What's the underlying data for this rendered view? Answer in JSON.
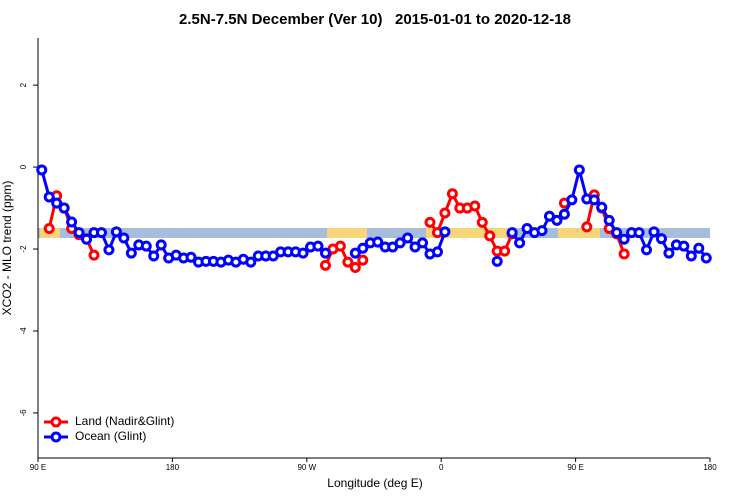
{
  "chart_data": {
    "type": "line",
    "title": "2.5N-7.5N December (Ver 10)   2015-01-01 to 2020-12-18",
    "x_label": "Longitude (deg E)",
    "y_label": "XCO2 - MLO trend (ppm)",
    "xlim": [
      90,
      540
    ],
    "ylim": [
      -7.1,
      3.15
    ],
    "xticks": [
      {
        "value": 90,
        "label": "90 E"
      },
      180,
      {
        "value": 270,
        "label": "90 W"
      },
      {
        "value": 360,
        "label": "0"
      },
      {
        "value": 450,
        "label": "90 E"
      },
      {
        "value": 540,
        "label": "180"
      }
    ],
    "yticks": [
      -6,
      -4,
      -2,
      0,
      2
    ],
    "legend": "bottom-left",
    "x": [
      92.5,
      97.5,
      102.5,
      107.5,
      112.5,
      117.5,
      122.5,
      127.5,
      132.5,
      137.5,
      142.5,
      147.5,
      152.5,
      157.5,
      162.5,
      167.5,
      172.5,
      177.5,
      182.5,
      187.5,
      192.5,
      197.5,
      202.5,
      207.5,
      212.5,
      217.5,
      222.5,
      227.5,
      232.5,
      237.5,
      242.5,
      247.5,
      252.5,
      257.5,
      262.5,
      267.5,
      272.5,
      277.5,
      282.5,
      287.5,
      292.5,
      297.5,
      302.5,
      307.5,
      312.5,
      317.5,
      322.5,
      327.5,
      332.5,
      337.5,
      342.5,
      347.5,
      352.5,
      357.5,
      362.5,
      367.5,
      372.5,
      377.5,
      382.5,
      387.5,
      392.5,
      397.5,
      402.5,
      407.5,
      412.5,
      417.5,
      422.5,
      427.5,
      432.5,
      437.5,
      442.5,
      447.5,
      452.5,
      457.5,
      462.5,
      467.5,
      472.5,
      477.5,
      482.5,
      487.5,
      492.5,
      497.5,
      502.5,
      507.5,
      512.5,
      517.5,
      522.5,
      527.5,
      532.5,
      537.5
    ],
    "series": [
      {
        "name": "Land (Nadir&Glint)",
        "color": "#ff0000",
        "values": [
          null,
          -1.5,
          -0.7,
          -1.0,
          -1.5,
          -1.65,
          -1.75,
          -2.15,
          null,
          null,
          null,
          null,
          null,
          null,
          null,
          null,
          null,
          null,
          null,
          null,
          null,
          null,
          null,
          null,
          null,
          null,
          null,
          null,
          null,
          null,
          null,
          null,
          null,
          null,
          null,
          null,
          null,
          null,
          -2.4,
          -2.0,
          -1.93,
          -2.32,
          -2.45,
          -2.27,
          null,
          null,
          null,
          null,
          null,
          null,
          null,
          null,
          -1.35,
          -1.6,
          -1.12,
          -0.65,
          -1.0,
          -1.0,
          -0.95,
          -1.35,
          -1.68,
          -2.05,
          -2.05,
          -1.63,
          null,
          null,
          null,
          null,
          null,
          null,
          -0.88,
          null,
          null,
          -1.46,
          -0.68,
          -1.0,
          -1.5,
          -1.63,
          -2.12,
          null,
          null,
          null,
          null,
          null,
          null,
          null,
          null,
          null,
          null,
          null
        ]
      },
      {
        "name": "Ocean (Glint)",
        "color": "#0000ff",
        "values": [
          -0.07,
          -0.73,
          -0.88,
          -1.0,
          -1.34,
          -1.6,
          -1.76,
          -1.6,
          -1.6,
          -2.02,
          -1.58,
          -1.73,
          -2.1,
          -1.9,
          -1.93,
          -2.17,
          -1.9,
          -2.22,
          -2.15,
          -2.22,
          -2.2,
          -2.32,
          -2.3,
          -2.3,
          -2.32,
          -2.27,
          -2.32,
          -2.25,
          -2.32,
          -2.17,
          -2.17,
          -2.17,
          -2.07,
          -2.07,
          -2.07,
          -2.1,
          -1.95,
          -1.93,
          -2.1,
          null,
          null,
          null,
          -2.1,
          -1.98,
          -1.85,
          -1.83,
          -1.95,
          -1.95,
          -1.85,
          -1.73,
          -1.95,
          -1.85,
          -2.12,
          -2.07,
          -1.58,
          null,
          null,
          null,
          null,
          null,
          null,
          -2.3,
          null,
          -1.6,
          -1.85,
          -1.5,
          -1.6,
          -1.55,
          -1.2,
          -1.3,
          -1.15,
          -0.8,
          -0.07,
          -0.78,
          -0.8,
          -0.98,
          -1.3,
          -1.6,
          -1.76,
          -1.6,
          -1.6,
          -2.02,
          -1.58,
          -1.75,
          -2.1,
          -1.9,
          -1.93,
          -2.17,
          -1.98,
          -2.22
        ]
      }
    ]
  }
}
